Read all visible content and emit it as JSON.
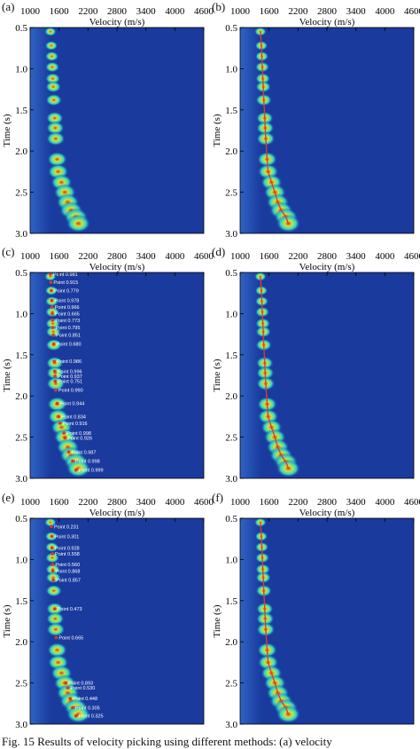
{
  "x_axis_label": "Velocity (m/s)",
  "y_axis_label": "Time (s)",
  "x_ticks": [
    "1000",
    "1600",
    "2200",
    "2800",
    "3400",
    "4000",
    "4600"
  ],
  "y_ticks": [
    "0.5",
    "1.0",
    "1.5",
    "2.0",
    "2.5",
    "3.0"
  ],
  "caption": "Fig. 15    Results of velocity picking using different methods: (a) velocity",
  "colors": {
    "background": "#1a3a9e",
    "background_light": "#2e63c4",
    "energy_low": "#2fd1c9",
    "energy_mid": "#c9e63a",
    "energy_high": "#d9362a",
    "pick_line": "#e23a2a",
    "annotation_text": "#ffffff"
  },
  "chart_data": [
    {
      "id": "a",
      "type": "heatmap",
      "label": "(a)",
      "xlabel": "Velocity (m/s)",
      "ylabel": "Time (s)",
      "xlim": [
        1000,
        4600
      ],
      "ylim": [
        3.0,
        0.5
      ],
      "energy_peaks": [
        {
          "t": 0.55,
          "v": 1420
        },
        {
          "t": 0.72,
          "v": 1440
        },
        {
          "t": 0.85,
          "v": 1450
        },
        {
          "t": 0.98,
          "v": 1460
        },
        {
          "t": 1.12,
          "v": 1470
        },
        {
          "t": 1.22,
          "v": 1480
        },
        {
          "t": 1.38,
          "v": 1490
        },
        {
          "t": 1.6,
          "v": 1510
        },
        {
          "t": 1.72,
          "v": 1520
        },
        {
          "t": 1.85,
          "v": 1530
        },
        {
          "t": 2.1,
          "v": 1560
        },
        {
          "t": 2.25,
          "v": 1580
        },
        {
          "t": 2.38,
          "v": 1650
        },
        {
          "t": 2.5,
          "v": 1720
        },
        {
          "t": 2.62,
          "v": 1780
        },
        {
          "t": 2.72,
          "v": 1850
        },
        {
          "t": 2.8,
          "v": 1950
        },
        {
          "t": 2.88,
          "v": 2000
        }
      ],
      "pick_line": false,
      "annotations": []
    },
    {
      "id": "b",
      "type": "heatmap",
      "label": "(b)",
      "xlabel": "Velocity (m/s)",
      "ylabel": "Time (s)",
      "xlim": [
        1000,
        4600
      ],
      "ylim": [
        3.0,
        0.5
      ],
      "energy_peaks": [
        {
          "t": 0.55,
          "v": 1420
        },
        {
          "t": 0.72,
          "v": 1440
        },
        {
          "t": 0.85,
          "v": 1450
        },
        {
          "t": 0.98,
          "v": 1460
        },
        {
          "t": 1.12,
          "v": 1470
        },
        {
          "t": 1.22,
          "v": 1480
        },
        {
          "t": 1.38,
          "v": 1490
        },
        {
          "t": 1.6,
          "v": 1510
        },
        {
          "t": 1.72,
          "v": 1520
        },
        {
          "t": 1.85,
          "v": 1530
        },
        {
          "t": 2.1,
          "v": 1560
        },
        {
          "t": 2.25,
          "v": 1580
        },
        {
          "t": 2.38,
          "v": 1650
        },
        {
          "t": 2.5,
          "v": 1720
        },
        {
          "t": 2.62,
          "v": 1780
        },
        {
          "t": 2.72,
          "v": 1850
        },
        {
          "t": 2.8,
          "v": 1950
        },
        {
          "t": 2.88,
          "v": 2000
        }
      ],
      "pick_line": true,
      "annotations": []
    },
    {
      "id": "c",
      "type": "heatmap",
      "label": "(c)",
      "xlabel": "Velocity (m/s)",
      "ylabel": "Time (s)",
      "xlim": [
        1000,
        4600
      ],
      "ylim": [
        3.0,
        0.5
      ],
      "energy_peaks": [
        {
          "t": 0.55,
          "v": 1420
        },
        {
          "t": 0.72,
          "v": 1440
        },
        {
          "t": 0.85,
          "v": 1450
        },
        {
          "t": 0.98,
          "v": 1460
        },
        {
          "t": 1.12,
          "v": 1470
        },
        {
          "t": 1.22,
          "v": 1480
        },
        {
          "t": 1.38,
          "v": 1490
        },
        {
          "t": 1.6,
          "v": 1510
        },
        {
          "t": 1.72,
          "v": 1520
        },
        {
          "t": 1.85,
          "v": 1530
        },
        {
          "t": 2.1,
          "v": 1560
        },
        {
          "t": 2.25,
          "v": 1580
        },
        {
          "t": 2.38,
          "v": 1650
        },
        {
          "t": 2.5,
          "v": 1720
        },
        {
          "t": 2.62,
          "v": 1780
        },
        {
          "t": 2.72,
          "v": 1850
        },
        {
          "t": 2.8,
          "v": 1950
        },
        {
          "t": 2.88,
          "v": 2000
        }
      ],
      "pick_line": false,
      "annotations": [
        {
          "t": 0.52,
          "v": 1420,
          "text": "Point 0.981"
        },
        {
          "t": 0.62,
          "v": 1430,
          "text": "Point 0.915"
        },
        {
          "t": 0.72,
          "v": 1440,
          "text": "Point 0.779"
        },
        {
          "t": 0.84,
          "v": 1450,
          "text": "Point 0.978"
        },
        {
          "t": 0.92,
          "v": 1455,
          "text": "Point 0.966"
        },
        {
          "t": 1.0,
          "v": 1460,
          "text": "Point 0.665"
        },
        {
          "t": 1.08,
          "v": 1465,
          "text": "Point 0.773"
        },
        {
          "t": 1.17,
          "v": 1470,
          "text": "Point 0.795"
        },
        {
          "t": 1.26,
          "v": 1480,
          "text": "Point 0.851"
        },
        {
          "t": 1.37,
          "v": 1490,
          "text": "Point 0.680"
        },
        {
          "t": 1.58,
          "v": 1500,
          "text": "Point 0.986"
        },
        {
          "t": 1.7,
          "v": 1510,
          "text": "Point 0.996"
        },
        {
          "t": 1.76,
          "v": 1515,
          "text": "Point 0.937"
        },
        {
          "t": 1.82,
          "v": 1520,
          "text": "Point 0.751"
        },
        {
          "t": 1.93,
          "v": 1530,
          "text": "Point 0.990"
        },
        {
          "t": 2.09,
          "v": 1560,
          "text": "Point 0.944"
        },
        {
          "t": 2.25,
          "v": 1590,
          "text": "Point 0.834"
        },
        {
          "t": 2.33,
          "v": 1620,
          "text": "Point 0.916"
        },
        {
          "t": 2.45,
          "v": 1700,
          "text": "Point 0.998"
        },
        {
          "t": 2.51,
          "v": 1720,
          "text": "Point 0.926"
        },
        {
          "t": 2.68,
          "v": 1800,
          "text": "Point 0.987"
        },
        {
          "t": 2.79,
          "v": 1880,
          "text": "Point 0.998"
        },
        {
          "t": 2.9,
          "v": 1950,
          "text": "Point 0.999"
        }
      ]
    },
    {
      "id": "d",
      "type": "heatmap",
      "label": "(d)",
      "xlabel": "Velocity (m/s)",
      "ylabel": "Time (s)",
      "xlim": [
        1000,
        4600
      ],
      "ylim": [
        3.0,
        0.5
      ],
      "energy_peaks": [
        {
          "t": 0.55,
          "v": 1420
        },
        {
          "t": 0.72,
          "v": 1440
        },
        {
          "t": 0.85,
          "v": 1450
        },
        {
          "t": 0.98,
          "v": 1460
        },
        {
          "t": 1.12,
          "v": 1470
        },
        {
          "t": 1.22,
          "v": 1480
        },
        {
          "t": 1.38,
          "v": 1490
        },
        {
          "t": 1.6,
          "v": 1510
        },
        {
          "t": 1.72,
          "v": 1520
        },
        {
          "t": 1.85,
          "v": 1530
        },
        {
          "t": 2.1,
          "v": 1560
        },
        {
          "t": 2.25,
          "v": 1580
        },
        {
          "t": 2.38,
          "v": 1650
        },
        {
          "t": 2.5,
          "v": 1720
        },
        {
          "t": 2.62,
          "v": 1780
        },
        {
          "t": 2.72,
          "v": 1850
        },
        {
          "t": 2.8,
          "v": 1950
        },
        {
          "t": 2.88,
          "v": 2000
        }
      ],
      "pick_line": true,
      "annotations": []
    },
    {
      "id": "e",
      "type": "heatmap",
      "label": "(e)",
      "xlabel": "Velocity (m/s)",
      "ylabel": "Time (s)",
      "xlim": [
        1000,
        4600
      ],
      "ylim": [
        3.0,
        0.5
      ],
      "energy_peaks": [
        {
          "t": 0.55,
          "v": 1420
        },
        {
          "t": 0.72,
          "v": 1440
        },
        {
          "t": 0.85,
          "v": 1450
        },
        {
          "t": 0.98,
          "v": 1460
        },
        {
          "t": 1.12,
          "v": 1470
        },
        {
          "t": 1.22,
          "v": 1480
        },
        {
          "t": 1.38,
          "v": 1490
        },
        {
          "t": 1.6,
          "v": 1510
        },
        {
          "t": 1.72,
          "v": 1520
        },
        {
          "t": 1.85,
          "v": 1530
        },
        {
          "t": 2.1,
          "v": 1560
        },
        {
          "t": 2.25,
          "v": 1580
        },
        {
          "t": 2.38,
          "v": 1650
        },
        {
          "t": 2.5,
          "v": 1720
        },
        {
          "t": 2.62,
          "v": 1780
        },
        {
          "t": 2.72,
          "v": 1850
        },
        {
          "t": 2.8,
          "v": 1950
        },
        {
          "t": 2.88,
          "v": 2000
        }
      ],
      "pick_line": false,
      "annotations": [
        {
          "t": 0.6,
          "v": 1440,
          "text": "Point 0.231"
        },
        {
          "t": 0.72,
          "v": 1450,
          "text": "Point 0.301"
        },
        {
          "t": 0.86,
          "v": 1455,
          "text": "Point 0.928"
        },
        {
          "t": 0.93,
          "v": 1460,
          "text": "Point 0.558"
        },
        {
          "t": 1.06,
          "v": 1465,
          "text": "Point 0.560"
        },
        {
          "t": 1.14,
          "v": 1470,
          "text": "Point 0.868"
        },
        {
          "t": 1.25,
          "v": 1480,
          "text": "Point 0.857"
        },
        {
          "t": 1.6,
          "v": 1510,
          "text": "Point 0.473"
        },
        {
          "t": 1.95,
          "v": 1540,
          "text": "Point 0.665"
        },
        {
          "t": 2.5,
          "v": 1740,
          "text": "Point 0.893"
        },
        {
          "t": 2.56,
          "v": 1780,
          "text": "Point 0.530"
        },
        {
          "t": 2.69,
          "v": 1830,
          "text": "Point 0.448"
        },
        {
          "t": 2.8,
          "v": 1880,
          "text": "Point 0.305"
        },
        {
          "t": 2.9,
          "v": 1950,
          "text": "Point 0.325"
        }
      ]
    },
    {
      "id": "f",
      "type": "heatmap",
      "label": "(f)",
      "xlabel": "Velocity (m/s)",
      "ylabel": "Time (s)",
      "xlim": [
        1000,
        4600
      ],
      "ylim": [
        3.0,
        0.5
      ],
      "energy_peaks": [
        {
          "t": 0.55,
          "v": 1420
        },
        {
          "t": 0.72,
          "v": 1440
        },
        {
          "t": 0.85,
          "v": 1450
        },
        {
          "t": 0.98,
          "v": 1460
        },
        {
          "t": 1.12,
          "v": 1470
        },
        {
          "t": 1.22,
          "v": 1480
        },
        {
          "t": 1.38,
          "v": 1490
        },
        {
          "t": 1.6,
          "v": 1510
        },
        {
          "t": 1.72,
          "v": 1520
        },
        {
          "t": 1.85,
          "v": 1530
        },
        {
          "t": 2.1,
          "v": 1560
        },
        {
          "t": 2.25,
          "v": 1580
        },
        {
          "t": 2.38,
          "v": 1650
        },
        {
          "t": 2.5,
          "v": 1720
        },
        {
          "t": 2.62,
          "v": 1780
        },
        {
          "t": 2.72,
          "v": 1850
        },
        {
          "t": 2.8,
          "v": 1950
        },
        {
          "t": 2.88,
          "v": 2000
        }
      ],
      "pick_line": true,
      "annotations": []
    }
  ]
}
